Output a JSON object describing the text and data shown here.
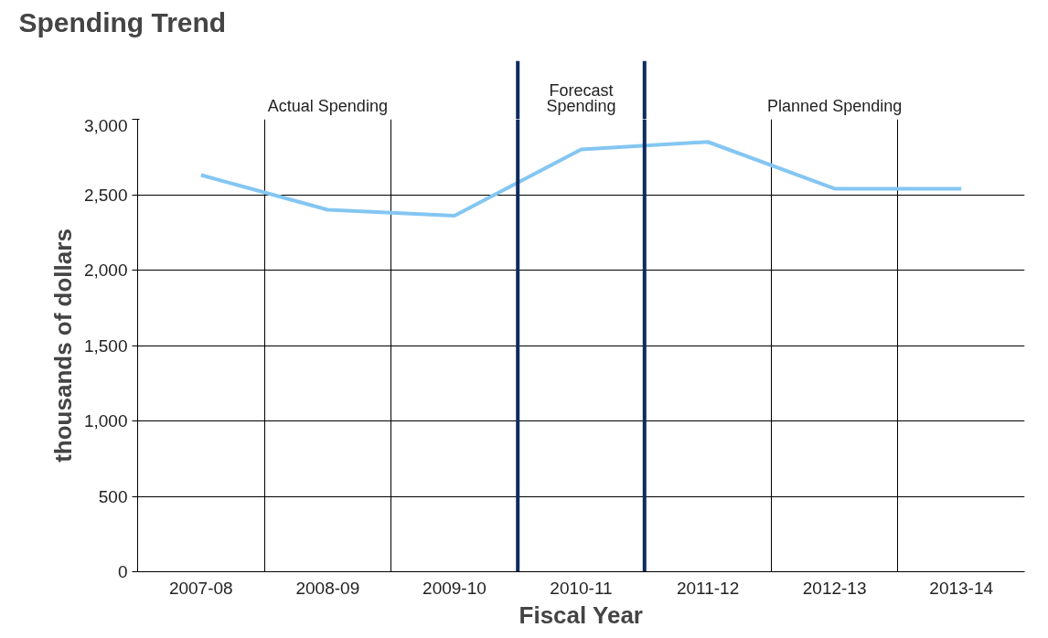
{
  "chart_data": {
    "type": "line",
    "title": "Spending Trend",
    "xlabel": "Fiscal Year",
    "ylabel": "thousands of dollars",
    "categories": [
      "2007-08",
      "2008-09",
      "2009-10",
      "2010-11",
      "2011-12",
      "2012-13",
      "2013-14"
    ],
    "series": [
      {
        "color": "#84c6f2",
        "values": [
          2630,
          2400,
          2360,
          2800,
          2850,
          2540,
          2540
        ]
      }
    ],
    "ylim": [
      0,
      3000
    ],
    "yticks": [
      {
        "value": 0,
        "label": "0"
      },
      {
        "value": 500,
        "label": "500"
      },
      {
        "value": 1000,
        "label": "1,000"
      },
      {
        "value": 1500,
        "label": "1,500"
      },
      {
        "value": 2000,
        "label": "2,000"
      },
      {
        "value": 2500,
        "label": "2,500"
      },
      {
        "value": 3000,
        "label": "3,000"
      }
    ],
    "annotations": [
      "Actual Spending",
      "Forecast\nSpending",
      "Planned Spending"
    ],
    "grid": true,
    "marker": "none",
    "line_style": "solid"
  }
}
